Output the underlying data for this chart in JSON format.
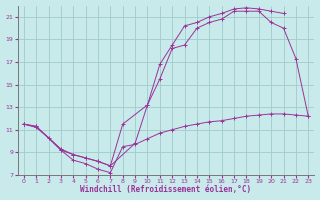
{
  "title": "",
  "xlabel": "Windchill (Refroidissement éolien,°C)",
  "ylabel": "",
  "xlim": [
    -0.5,
    23.5
  ],
  "ylim": [
    7,
    22
  ],
  "xticks": [
    0,
    1,
    2,
    3,
    4,
    5,
    6,
    7,
    8,
    9,
    10,
    11,
    12,
    13,
    14,
    15,
    16,
    17,
    18,
    19,
    20,
    21,
    22,
    23
  ],
  "yticks": [
    7,
    9,
    11,
    13,
    15,
    17,
    19,
    21
  ],
  "background_color": "#c8eaea",
  "grid_color": "#a0cccc",
  "line_color": "#993399",
  "lines": [
    {
      "x": [
        0,
        1,
        3,
        4,
        5,
        6,
        7,
        8,
        10,
        11,
        12,
        13,
        14,
        15,
        16,
        17,
        18,
        19,
        20,
        21,
        22,
        23
      ],
      "y": [
        11.5,
        11.3,
        9.2,
        8.8,
        8.5,
        8.2,
        7.8,
        11.5,
        13.2,
        15.5,
        18.2,
        18.5,
        20.0,
        20.5,
        20.8,
        21.5,
        21.5,
        21.5,
        20.5,
        20.0,
        17.3,
        12.2
      ]
    },
    {
      "x": [
        0,
        1,
        3,
        4,
        5,
        6,
        7,
        9,
        10,
        11,
        12,
        13,
        14,
        15,
        16,
        17,
        18,
        19,
        20,
        21
      ],
      "y": [
        11.5,
        11.3,
        9.3,
        8.8,
        8.5,
        8.2,
        7.8,
        9.8,
        13.2,
        16.8,
        18.5,
        20.2,
        20.5,
        21.0,
        21.3,
        21.7,
        21.8,
        21.7,
        21.5,
        21.3
      ]
    },
    {
      "x": [
        0,
        1,
        2,
        3,
        4,
        5,
        6,
        7,
        8,
        9,
        10,
        11,
        12,
        13,
        14,
        15,
        16,
        17,
        18,
        19,
        20,
        21,
        22,
        23
      ],
      "y": [
        11.5,
        11.2,
        10.3,
        9.2,
        8.3,
        8.0,
        7.5,
        7.2,
        9.5,
        9.7,
        10.2,
        10.7,
        11.0,
        11.3,
        11.5,
        11.7,
        11.8,
        12.0,
        12.2,
        12.3,
        12.4,
        12.4,
        12.3,
        12.2
      ]
    }
  ]
}
